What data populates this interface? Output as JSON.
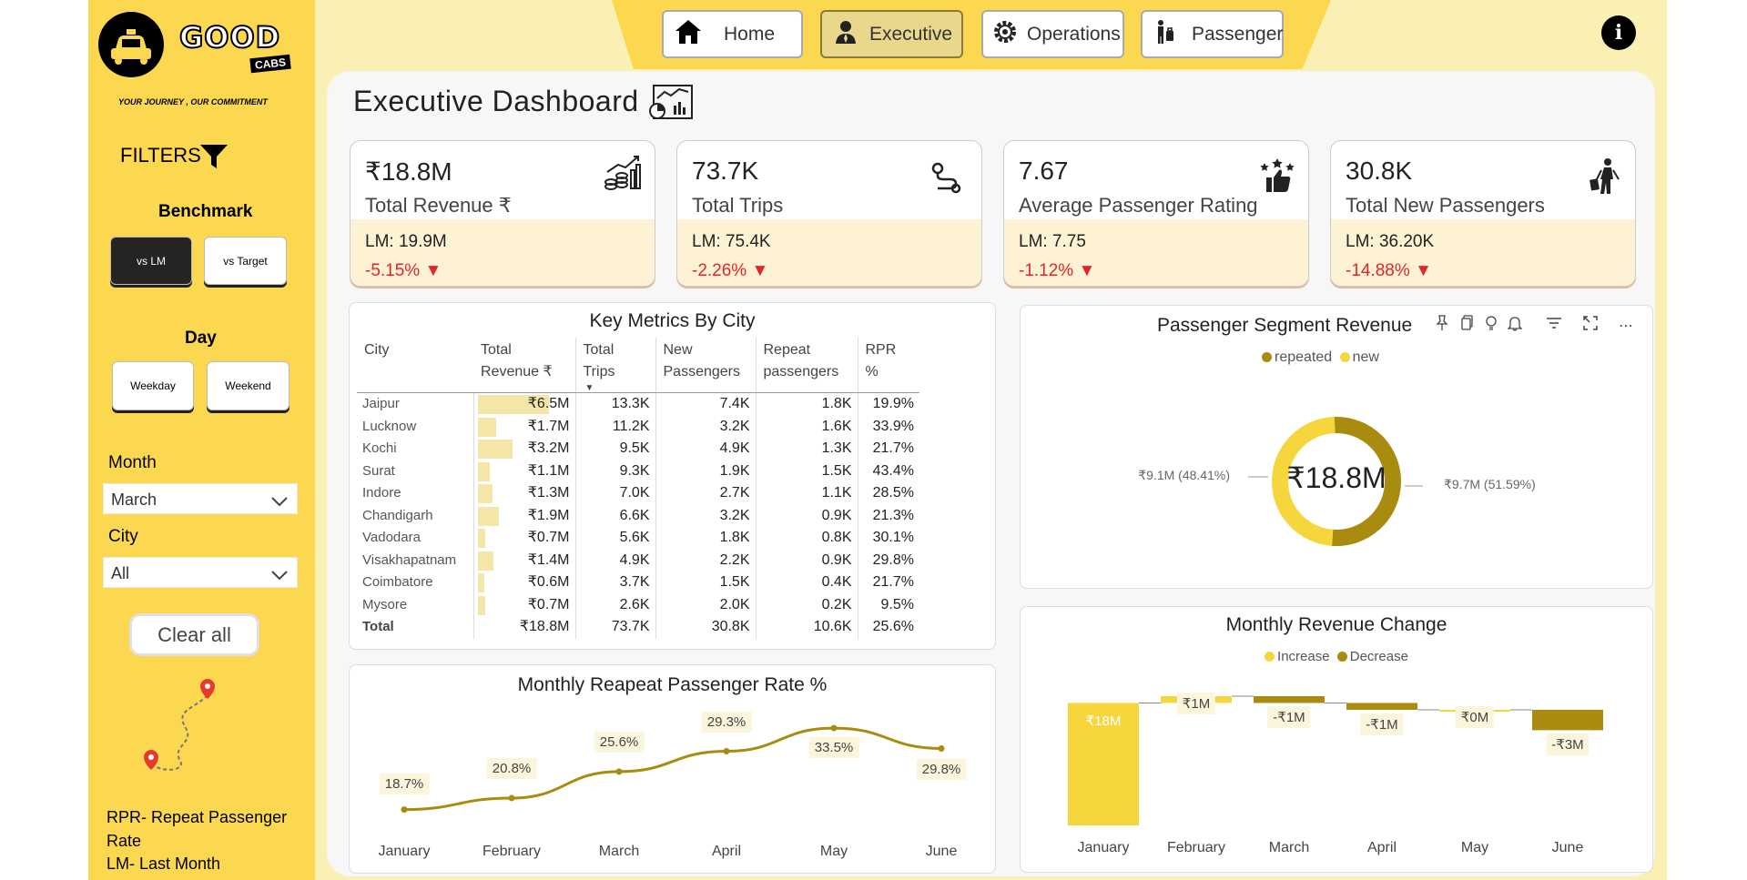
{
  "brand": {
    "name": "GOOD",
    "sub": "CABS",
    "tagline": "YOUR JOURNEY , OUR COMMITMENT"
  },
  "sidebar": {
    "filters_title": "FILTERS",
    "benchmark_label": "Benchmark",
    "benchmark_options": [
      "vs LM",
      "vs Target"
    ],
    "day_label": "Day",
    "day_options": [
      "Weekday",
      "Weekend"
    ],
    "month_label": "Month",
    "month_value": "March",
    "city_label": "City",
    "city_value": "All",
    "clear_all": "Clear all",
    "notes": [
      "RPR- Repeat Passenger",
      "Rate",
      "LM- Last Month"
    ]
  },
  "nav": {
    "tabs": [
      "Home",
      "Executive",
      "Operations",
      "Passenger"
    ],
    "active": "Executive"
  },
  "page_title": "Executive Dashboard",
  "kpis": [
    {
      "value": "₹18.8M",
      "name": "Total Revenue ₹",
      "lm": "LM: 19.9M",
      "change": "-5.15%",
      "icon": "revenue-growth-icon"
    },
    {
      "value": "73.7K",
      "name": "Total Trips",
      "lm": "LM: 75.4K",
      "change": "-2.26%",
      "icon": "route-icon"
    },
    {
      "value": "7.67",
      "name": "Average Passenger Rating",
      "lm": "LM: 7.75",
      "change": "-1.12%",
      "icon": "rating-thumbs-up-icon"
    },
    {
      "value": "30.8K",
      "name": "Total New Passengers",
      "lm": "LM: 36.20K",
      "change": "-14.88%",
      "icon": "traveler-icon"
    }
  ],
  "city_table": {
    "title": "Key Metrics By City",
    "columns": [
      "City",
      "Total Revenue ₹",
      "Total Trips",
      "New Passengers",
      "Repeat passengers",
      "RPR %"
    ],
    "rows": [
      {
        "city": "Jaipur",
        "revenue": "₹6.5M",
        "rev_value": 6.5,
        "trips": "13.3K",
        "new": "7.4K",
        "repeat": "1.8K",
        "rpr": "19.9%"
      },
      {
        "city": "Lucknow",
        "revenue": "₹1.7M",
        "rev_value": 1.7,
        "trips": "11.2K",
        "new": "3.2K",
        "repeat": "1.6K",
        "rpr": "33.9%"
      },
      {
        "city": "Kochi",
        "revenue": "₹3.2M",
        "rev_value": 3.2,
        "trips": "9.5K",
        "new": "4.9K",
        "repeat": "1.3K",
        "rpr": "21.7%"
      },
      {
        "city": "Surat",
        "revenue": "₹1.1M",
        "rev_value": 1.1,
        "trips": "9.3K",
        "new": "1.9K",
        "repeat": "1.5K",
        "rpr": "43.4%"
      },
      {
        "city": "Indore",
        "revenue": "₹1.3M",
        "rev_value": 1.3,
        "trips": "7.0K",
        "new": "2.7K",
        "repeat": "1.1K",
        "rpr": "28.5%"
      },
      {
        "city": "Chandigarh",
        "revenue": "₹1.9M",
        "rev_value": 1.9,
        "trips": "6.6K",
        "new": "3.2K",
        "repeat": "0.9K",
        "rpr": "21.3%"
      },
      {
        "city": "Vadodara",
        "revenue": "₹0.7M",
        "rev_value": 0.7,
        "trips": "5.6K",
        "new": "1.8K",
        "repeat": "0.8K",
        "rpr": "30.1%"
      },
      {
        "city": "Visakhapatnam",
        "revenue": "₹1.4M",
        "rev_value": 1.4,
        "trips": "4.9K",
        "new": "2.2K",
        "repeat": "0.9K",
        "rpr": "29.8%"
      },
      {
        "city": "Coimbatore",
        "revenue": "₹0.6M",
        "rev_value": 0.6,
        "trips": "3.7K",
        "new": "1.5K",
        "repeat": "0.4K",
        "rpr": "21.7%"
      },
      {
        "city": "Mysore",
        "revenue": "₹0.7M",
        "rev_value": 0.7,
        "trips": "2.6K",
        "new": "2.0K",
        "repeat": "0.2K",
        "rpr": "9.5%"
      }
    ],
    "total": {
      "city": "Total",
      "revenue": "₹18.8M",
      "trips": "73.7K",
      "new": "30.8K",
      "repeat": "10.6K",
      "rpr": "25.6%"
    }
  },
  "chart_data": [
    {
      "type": "pie",
      "title": "Passenger Segment Revenue",
      "center_label": "₹18.8M",
      "legend": [
        "repeated",
        "new"
      ],
      "slices": [
        {
          "name": "repeated",
          "value": 9.7,
          "label": "₹9.7M (51.59%)",
          "color": "#a88b0f"
        },
        {
          "name": "new",
          "value": 9.1,
          "label": "₹9.1M (48.41%)",
          "color": "#f5d63d"
        }
      ]
    },
    {
      "type": "line",
      "title": "Monthly Reapeat Passenger Rate %",
      "categories": [
        "January",
        "February",
        "March",
        "April",
        "May",
        "June"
      ],
      "values": [
        18.7,
        20.8,
        25.6,
        29.3,
        33.5,
        29.8
      ],
      "labels": [
        "18.7%",
        "20.8%",
        "25.6%",
        "29.3%",
        "33.5%",
        "29.8%"
      ],
      "color": "#a88b0f"
    },
    {
      "type": "bar",
      "title": "Monthly Revenue Change",
      "legend": [
        "Increase",
        "Decrease"
      ],
      "categories": [
        "January",
        "February",
        "March",
        "April",
        "May",
        "June"
      ],
      "values": [
        18,
        1,
        -1,
        -1,
        0,
        -3
      ],
      "labels": [
        "₹18M",
        "₹1M",
        "-₹1M",
        "-₹1M",
        "₹0M",
        "-₹3M"
      ],
      "colors": {
        "increase": "#f5d63d",
        "decrease": "#a88b0f"
      }
    }
  ],
  "visual_toolbar": {
    "icons": [
      "pin-icon",
      "copy-icon",
      "bulb-icon",
      "bell-icon",
      "filter-icon",
      "expand-icon",
      "more-icon"
    ]
  }
}
